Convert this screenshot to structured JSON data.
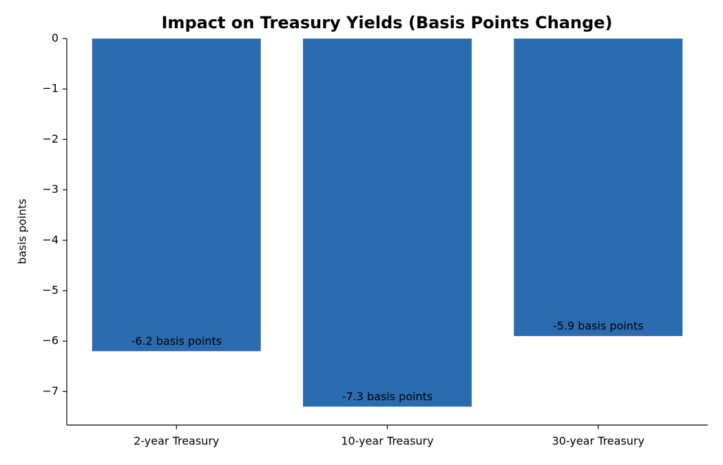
{
  "chart_data": {
    "type": "bar",
    "title": "Impact on Treasury Yields (Basis Points Change)",
    "y_label": "basis points",
    "categories": [
      "2-year Treasury",
      "10-year Treasury",
      "30-year Treasury"
    ],
    "values": [
      -6.2,
      -7.3,
      -5.9
    ],
    "value_labels": [
      "-6.2 basis points",
      "-7.3 basis points",
      "-5.9 basis points"
    ],
    "color": "#2b6cb0",
    "ylim": [
      -7.665,
      0
    ],
    "yticks": [
      0,
      {
        "value": -1,
        "label": "−1"
      },
      {
        "value": -2,
        "label": "−2"
      },
      {
        "value": -3,
        "label": "−3"
      },
      {
        "value": -4,
        "label": "−4"
      },
      {
        "value": -5,
        "label": "−5"
      },
      {
        "value": -6,
        "label": "−6"
      },
      {
        "value": -7,
        "label": "−7"
      }
    ],
    "grid": false
  }
}
